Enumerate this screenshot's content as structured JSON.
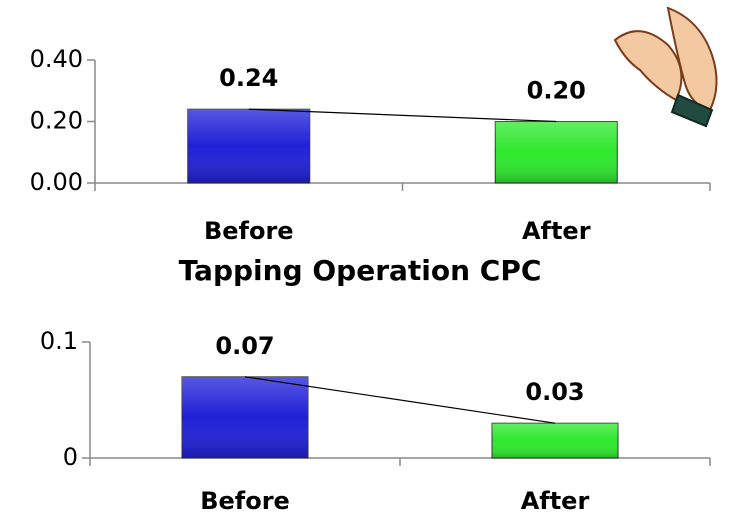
{
  "chart_data": [
    {
      "type": "bar",
      "categories": [
        "Before",
        "After"
      ],
      "values": [
        0.24,
        0.2
      ],
      "value_labels": [
        "0.24",
        "0.20"
      ],
      "colors": [
        "#2020d8",
        "#2ee82e"
      ],
      "ylim": [
        0,
        0.4
      ],
      "yticks": [
        {
          "value": 0,
          "label": "0.00"
        },
        {
          "value": 0.2,
          "label": "0.20"
        },
        {
          "value": 0.4,
          "label": "0.40"
        }
      ],
      "trend_line": true
    },
    {
      "type": "bar",
      "title": "Tapping Operation CPC",
      "categories": [
        "Before",
        "After"
      ],
      "values": [
        0.07,
        0.03
      ],
      "colors": [
        "#2020d8",
        "#2ee82e"
      ],
      "ylim": [
        0,
        0.1
      ],
      "yticks": [
        0,
        0.1
      ],
      "trend_line": true
    }
  ]
}
